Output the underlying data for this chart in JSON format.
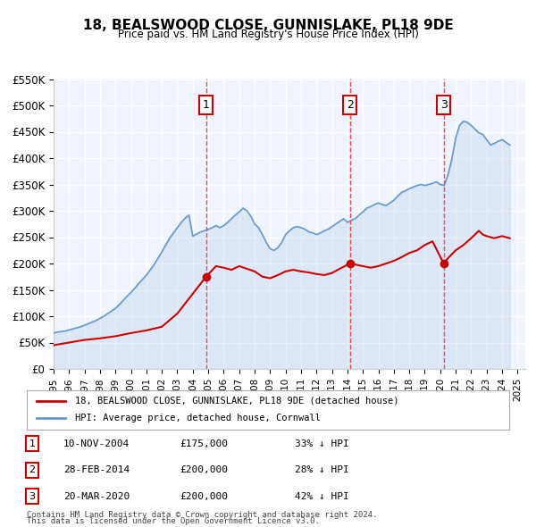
{
  "title": "18, BEALSWOOD CLOSE, GUNNISLAKE, PL18 9DE",
  "subtitle": "Price paid vs. HM Land Registry's House Price Index (HPI)",
  "xlabel": "",
  "ylabel": "",
  "ylim": [
    0,
    550000
  ],
  "xlim_start": 1995.0,
  "xlim_end": 2025.5,
  "yticks": [
    0,
    50000,
    100000,
    150000,
    200000,
    250000,
    300000,
    350000,
    400000,
    450000,
    500000,
    550000
  ],
  "ytick_labels": [
    "£0",
    "£50K",
    "£100K",
    "£150K",
    "£200K",
    "£250K",
    "£300K",
    "£350K",
    "£400K",
    "£450K",
    "£500K",
    "£550K"
  ],
  "xticks": [
    1995,
    1996,
    1997,
    1998,
    1999,
    2000,
    2001,
    2002,
    2003,
    2004,
    2005,
    2006,
    2007,
    2008,
    2009,
    2010,
    2011,
    2012,
    2013,
    2014,
    2015,
    2016,
    2017,
    2018,
    2019,
    2020,
    2021,
    2022,
    2023,
    2024,
    2025
  ],
  "background_color": "#f0f4ff",
  "plot_bg_color": "#f0f4ff",
  "grid_color": "#ffffff",
  "hpi_color": "#6699cc",
  "price_color": "#cc0000",
  "sale_marker_color": "#cc0000",
  "sale_vline_color": "#ff4444",
  "transactions": [
    {
      "label": "1",
      "date_x": 2004.86,
      "price": 175000,
      "text": "10-NOV-2004",
      "price_text": "£175,000",
      "hpi_pct": "33% ↓ HPI"
    },
    {
      "label": "2",
      "date_x": 2014.16,
      "price": 200000,
      "text": "28-FEB-2014",
      "price_text": "£200,000",
      "hpi_pct": "28% ↓ HPI"
    },
    {
      "label": "3",
      "date_x": 2020.22,
      "price": 200000,
      "text": "20-MAR-2020",
      "price_text": "£200,000",
      "hpi_pct": "42% ↓ HPI"
    }
  ],
  "legend_price_label": "18, BEALSWOOD CLOSE, GUNNISLAKE, PL18 9DE (detached house)",
  "legend_hpi_label": "HPI: Average price, detached house, Cornwall",
  "footer1": "Contains HM Land Registry data © Crown copyright and database right 2024.",
  "footer2": "This data is licensed under the Open Government Licence v3.0.",
  "hpi_data_x": [
    1995.0,
    1995.25,
    1995.5,
    1995.75,
    1996.0,
    1996.25,
    1996.5,
    1996.75,
    1997.0,
    1997.25,
    1997.5,
    1997.75,
    1998.0,
    1998.25,
    1998.5,
    1998.75,
    1999.0,
    1999.25,
    1999.5,
    1999.75,
    2000.0,
    2000.25,
    2000.5,
    2000.75,
    2001.0,
    2001.25,
    2001.5,
    2001.75,
    2002.0,
    2002.25,
    2002.5,
    2002.75,
    2003.0,
    2003.25,
    2003.5,
    2003.75,
    2004.0,
    2004.25,
    2004.5,
    2004.75,
    2005.0,
    2005.25,
    2005.5,
    2005.75,
    2006.0,
    2006.25,
    2006.5,
    2006.75,
    2007.0,
    2007.25,
    2007.5,
    2007.75,
    2008.0,
    2008.25,
    2008.5,
    2008.75,
    2009.0,
    2009.25,
    2009.5,
    2009.75,
    2010.0,
    2010.25,
    2010.5,
    2010.75,
    2011.0,
    2011.25,
    2011.5,
    2011.75,
    2012.0,
    2012.25,
    2012.5,
    2012.75,
    2013.0,
    2013.25,
    2013.5,
    2013.75,
    2014.0,
    2014.25,
    2014.5,
    2014.75,
    2015.0,
    2015.25,
    2015.5,
    2015.75,
    2016.0,
    2016.25,
    2016.5,
    2016.75,
    2017.0,
    2017.25,
    2017.5,
    2017.75,
    2018.0,
    2018.25,
    2018.5,
    2018.75,
    2019.0,
    2019.25,
    2019.5,
    2019.75,
    2020.0,
    2020.25,
    2020.5,
    2020.75,
    2021.0,
    2021.25,
    2021.5,
    2021.75,
    2022.0,
    2022.25,
    2022.5,
    2022.75,
    2023.0,
    2023.25,
    2023.5,
    2023.75,
    2024.0,
    2024.25,
    2024.5
  ],
  "hpi_data_y": [
    68000,
    70000,
    71000,
    72000,
    74000,
    76000,
    78000,
    80000,
    83000,
    86000,
    89000,
    92000,
    96000,
    100000,
    105000,
    110000,
    115000,
    122000,
    130000,
    138000,
    145000,
    153000,
    162000,
    170000,
    178000,
    188000,
    198000,
    210000,
    222000,
    235000,
    248000,
    258000,
    268000,
    278000,
    286000,
    292000,
    252000,
    256000,
    260000,
    262000,
    265000,
    268000,
    272000,
    268000,
    272000,
    278000,
    285000,
    292000,
    298000,
    305000,
    300000,
    290000,
    275000,
    268000,
    255000,
    240000,
    228000,
    225000,
    230000,
    240000,
    255000,
    262000,
    268000,
    270000,
    268000,
    265000,
    260000,
    258000,
    255000,
    258000,
    262000,
    265000,
    270000,
    275000,
    280000,
    285000,
    278000,
    282000,
    285000,
    292000,
    298000,
    305000,
    308000,
    312000,
    315000,
    312000,
    310000,
    315000,
    320000,
    328000,
    335000,
    338000,
    342000,
    345000,
    348000,
    350000,
    348000,
    350000,
    352000,
    355000,
    350000,
    348000,
    368000,
    398000,
    438000,
    462000,
    470000,
    468000,
    462000,
    455000,
    448000,
    445000,
    435000,
    425000,
    428000,
    432000,
    435000,
    430000,
    425000
  ],
  "price_data_x": [
    1995.0,
    1996.0,
    1997.0,
    1998.0,
    1999.0,
    2000.0,
    2001.0,
    2002.0,
    2003.0,
    2004.86,
    2005.5,
    2006.0,
    2006.5,
    2007.0,
    2007.5,
    2008.0,
    2008.5,
    2009.0,
    2009.5,
    2010.0,
    2010.5,
    2011.0,
    2011.5,
    2012.0,
    2012.5,
    2013.0,
    2013.5,
    2014.16,
    2014.5,
    2015.0,
    2015.5,
    2016.0,
    2016.5,
    2017.0,
    2017.5,
    2018.0,
    2018.5,
    2019.0,
    2019.5,
    2020.22,
    2020.5,
    2021.0,
    2021.5,
    2022.0,
    2022.25,
    2022.5,
    2022.75,
    2023.0,
    2023.5,
    2024.0,
    2024.5
  ],
  "price_data_y": [
    45000,
    50000,
    55000,
    58000,
    62000,
    68000,
    73000,
    80000,
    105000,
    175000,
    195000,
    192000,
    188000,
    195000,
    190000,
    185000,
    175000,
    172000,
    178000,
    185000,
    188000,
    185000,
    183000,
    180000,
    178000,
    182000,
    190000,
    200000,
    198000,
    195000,
    192000,
    195000,
    200000,
    205000,
    212000,
    220000,
    225000,
    235000,
    242000,
    200000,
    210000,
    225000,
    235000,
    248000,
    255000,
    262000,
    255000,
    252000,
    248000,
    252000,
    248000
  ]
}
